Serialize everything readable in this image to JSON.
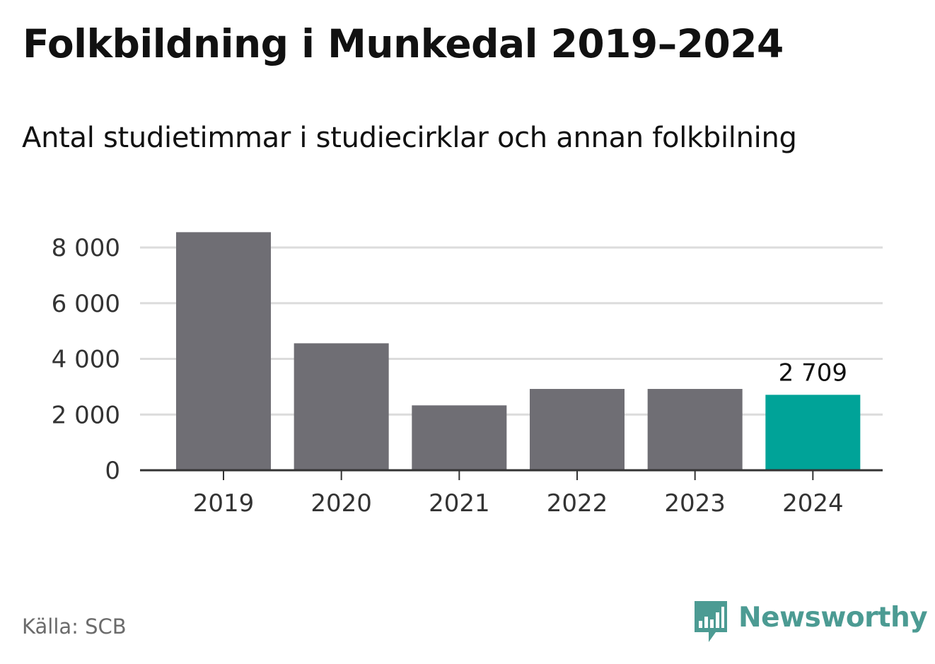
{
  "title": "Folkbildning i Munkedal 2019–2024",
  "subtitle": "Antal studietimmar i studiecirklar och annan folkbilning",
  "source": "Källa: SCB",
  "brand": {
    "name": "Newsworthy",
    "icon": "newsworthy-logo-icon",
    "color": "#4c9b93"
  },
  "colors": {
    "bar": "#6f6e74",
    "highlight": "#00a398",
    "grid": "#dcdcdc",
    "axis": "#333333"
  },
  "chart_data": {
    "type": "bar",
    "title": "Folkbildning i Munkedal 2019–2024",
    "subtitle": "Antal studietimmar i studiecirklar och annan folkbilning",
    "categories": [
      "2019",
      "2020",
      "2021",
      "2022",
      "2023",
      "2024"
    ],
    "values": [
      8550,
      4560,
      2330,
      2920,
      2920,
      2709
    ],
    "highlight_index": 5,
    "data_labels": [
      {
        "index": 5,
        "text": "2 709"
      }
    ],
    "yticks": [
      0,
      2000,
      4000,
      6000,
      8000
    ],
    "ytick_labels": [
      "0",
      "2 000",
      "4 000",
      "6 000",
      "8 000"
    ],
    "ylim": [
      0,
      8000
    ],
    "xlabel": "",
    "ylabel": "",
    "grid": true,
    "legend": "none"
  }
}
